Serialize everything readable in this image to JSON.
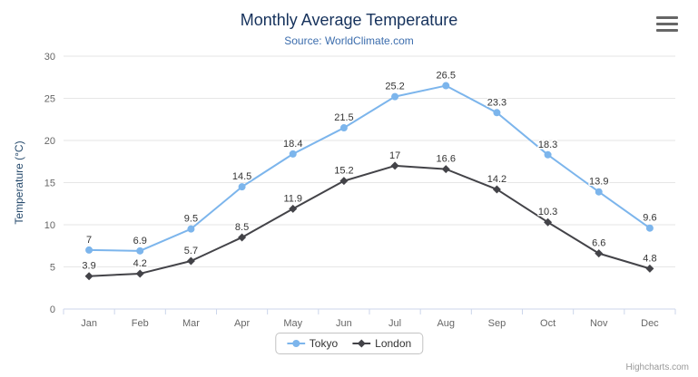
{
  "chart": {
    "title": "Monthly Average Temperature",
    "subtitle": "Source: WorldClimate.com",
    "credits": "Highcharts.com"
  },
  "chart_data": {
    "type": "line",
    "title": "Monthly Average Temperature",
    "subtitle": "Source: WorldClimate.com",
    "xlabel": "",
    "ylabel": "Temperature (°C)",
    "ylim": [
      0,
      30
    ],
    "ytick": 5,
    "grid": true,
    "legend_position": "bottom",
    "categories": [
      "Jan",
      "Feb",
      "Mar",
      "Apr",
      "May",
      "Jun",
      "Jul",
      "Aug",
      "Sep",
      "Oct",
      "Nov",
      "Dec"
    ],
    "series": [
      {
        "name": "Tokyo",
        "color": "#7cb5ec",
        "marker": "circle",
        "values": [
          7,
          6.9,
          9.5,
          14.5,
          18.4,
          21.5,
          25.2,
          26.5,
          23.3,
          18.3,
          13.9,
          9.6
        ]
      },
      {
        "name": "London",
        "color": "#434348",
        "marker": "diamond",
        "values": [
          3.9,
          4.2,
          5.7,
          8.5,
          11.9,
          15.2,
          17,
          16.6,
          14.2,
          10.3,
          6.6,
          4.8
        ]
      }
    ],
    "colors": {
      "gridline": "#e6e6e6",
      "axis_line": "#ccd6eb",
      "axis_label": "#666666",
      "title": "#16325c",
      "subtitle": "#3c6dad",
      "data_label": "#333333"
    }
  }
}
